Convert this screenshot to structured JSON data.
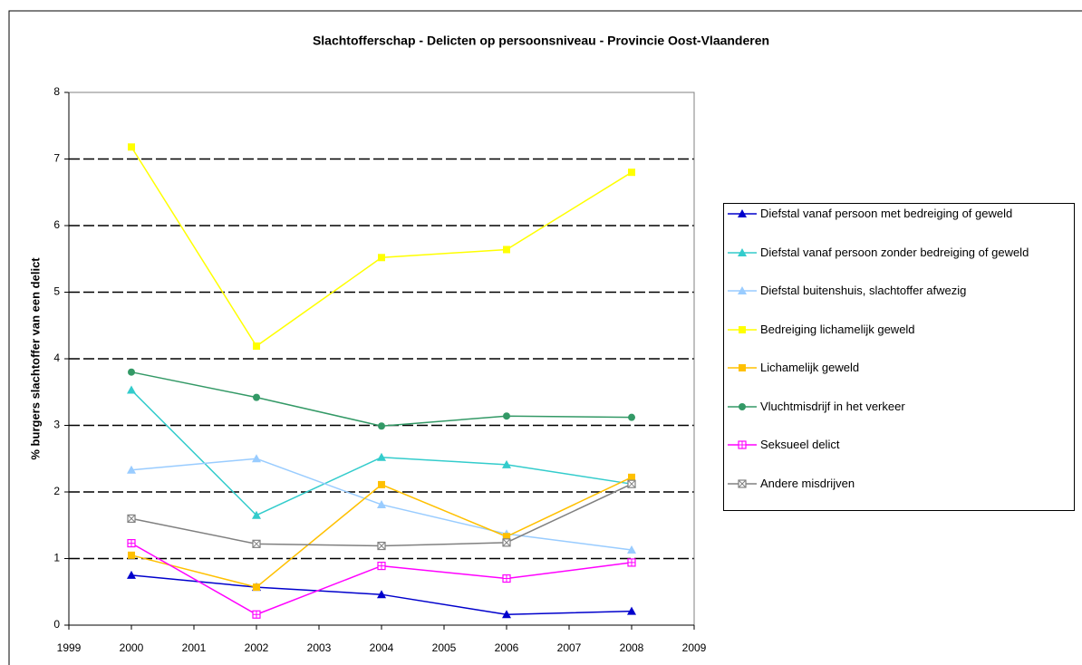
{
  "chart_data": {
    "type": "line",
    "title": "Slachtofferschap - Delicten op persoonsniveau - Provincie Oost-Vlaanderen",
    "y_label": "% burgers slachtoffer van een delict",
    "x": [
      2000,
      2002,
      2004,
      2006,
      2008
    ],
    "xlim": [
      1999,
      2009
    ],
    "xticks": [
      1999,
      2000,
      2001,
      2002,
      2003,
      2004,
      2005,
      2006,
      2007,
      2008,
      2009
    ],
    "ylim": [
      0,
      8
    ],
    "yticks": [
      0,
      1,
      2,
      3,
      4,
      5,
      6,
      7,
      8
    ],
    "grid": true,
    "legend": "right",
    "series": [
      {
        "name": "Diefstal vanaf persoon met bedreiging of geweld",
        "color": "#0000cc",
        "marker": "triangle",
        "values": [
          0.75,
          0.57,
          0.46,
          0.16,
          0.21
        ]
      },
      {
        "name": "Diefstal vanaf persoon zonder bedreiging of geweld",
        "color": "#33cccc",
        "marker": "triangle",
        "values": [
          3.53,
          1.65,
          2.52,
          2.41,
          2.12
        ]
      },
      {
        "name": "Diefstal buitenshuis, slachtoffer afwezig",
        "color": "#99ccff",
        "marker": "triangle",
        "values": [
          2.33,
          2.5,
          1.81,
          1.37,
          1.13
        ]
      },
      {
        "name": "Bedreiging lichamelijk geweld",
        "color": "#ffff00",
        "marker": "square",
        "values": [
          7.18,
          4.19,
          5.52,
          5.64,
          6.8
        ]
      },
      {
        "name": "Lichamelijk geweld",
        "color": "#ffc000",
        "marker": "square",
        "values": [
          1.05,
          0.57,
          2.11,
          1.33,
          2.22
        ]
      },
      {
        "name": "Vluchtmisdrijf in het verkeer",
        "color": "#339966",
        "marker": "circle",
        "values": [
          3.8,
          3.42,
          2.99,
          3.14,
          3.12
        ]
      },
      {
        "name": "Seksueel delict",
        "color": "#ff00ff",
        "marker": "squareplus",
        "values": [
          1.23,
          0.16,
          0.89,
          0.7,
          0.94
        ]
      },
      {
        "name": "Andere misdrijven",
        "color": "#808080",
        "marker": "squarex",
        "values": [
          1.6,
          1.22,
          1.19,
          1.24,
          2.12
        ]
      }
    ]
  }
}
